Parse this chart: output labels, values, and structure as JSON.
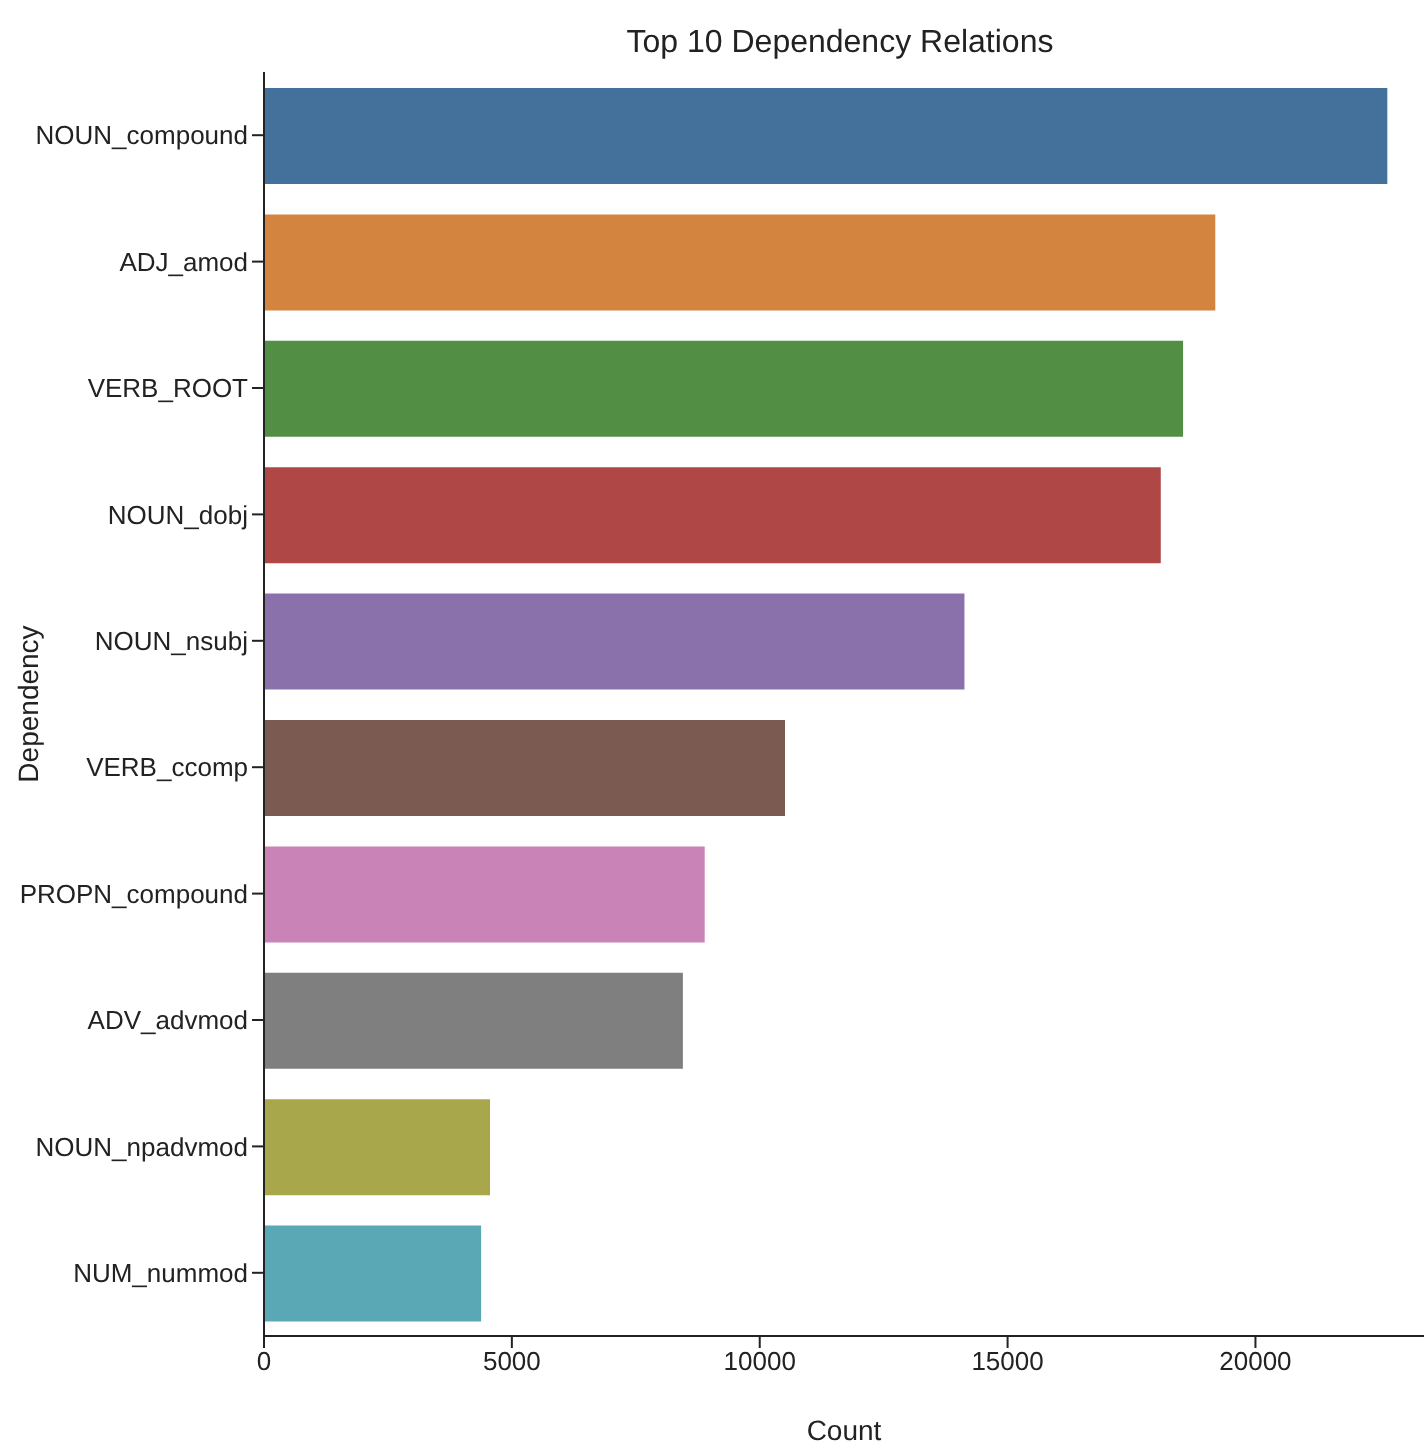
{
  "chart_data": {
    "type": "bar",
    "orientation": "horizontal",
    "title": "Top 10 Dependency Relations",
    "xlabel": "Count",
    "ylabel": "Dependency",
    "categories": [
      "NOUN_compound",
      "ADJ_amod",
      "VERB_ROOT",
      "NOUN_dobj",
      "NOUN_nsubj",
      "VERB_ccomp",
      "PROPN_compound",
      "ADV_advmod",
      "NOUN_npadvmod",
      "NUM_nummod"
    ],
    "values": [
      22660,
      19190,
      18540,
      18090,
      14130,
      10510,
      8890,
      8450,
      4560,
      4380
    ],
    "colors": [
      "#44709c",
      "#d3843f",
      "#528f45",
      "#ae4745",
      "#8b71ab",
      "#7b5a51",
      "#c983b6",
      "#7f7f7f",
      "#a8a74b",
      "#5aa8b5"
    ],
    "xlim": [
      0,
      23400
    ],
    "xticks": [
      0,
      5000,
      10000,
      15000,
      20000
    ],
    "grid": false,
    "legend": false
  }
}
